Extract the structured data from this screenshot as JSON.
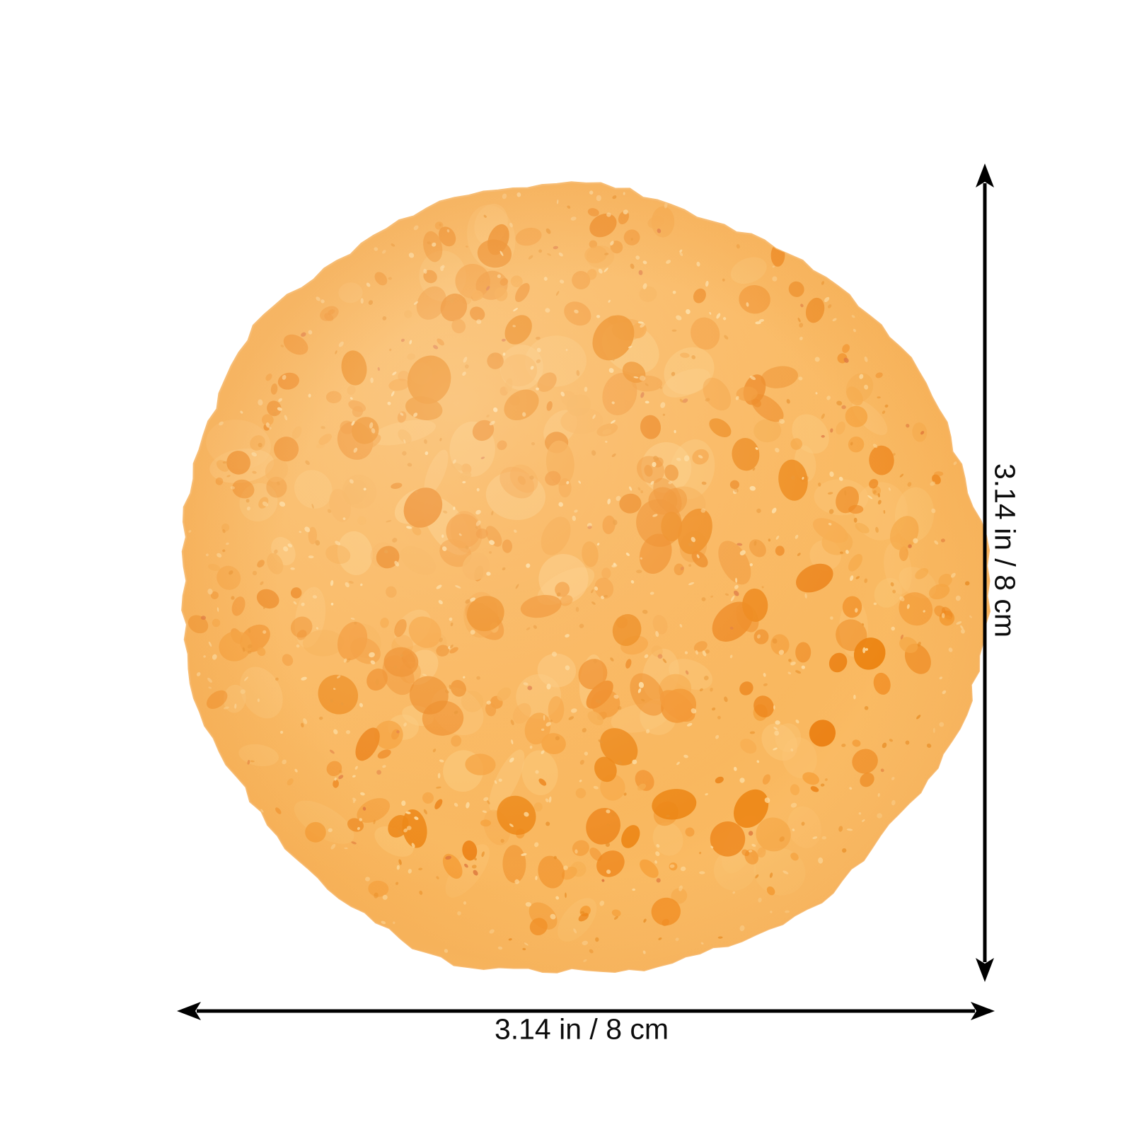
{
  "page": {
    "background_color": "#ffffff"
  },
  "product": {
    "description": "round orange cellulose compressed facial sponge",
    "colors": {
      "base_center": "#F8A945",
      "base_mid": "#F9B55A",
      "base_edge": "#FBC87C",
      "edge_fuzz": "#F8BE74",
      "pore_palette": [
        "#F59D35",
        "#F2932B",
        "#EE861C",
        "#F6A948",
        "#EB7F12"
      ],
      "deep_pore": "#EC8310",
      "light_patch": "#FBC778",
      "speckle_light": "#FDDCA0",
      "speckle_dark": "#E88D25",
      "speckle_red": "#DB7038",
      "highlight": "#FFF6E3",
      "rim_shade": "#E8821A"
    }
  },
  "annotations": {
    "vertical_label": "3.14 in / 8 cm",
    "horizontal_label": "3.14 in / 8 cm",
    "arrow_color": "#000000",
    "text_color": "#0c0c0c"
  }
}
